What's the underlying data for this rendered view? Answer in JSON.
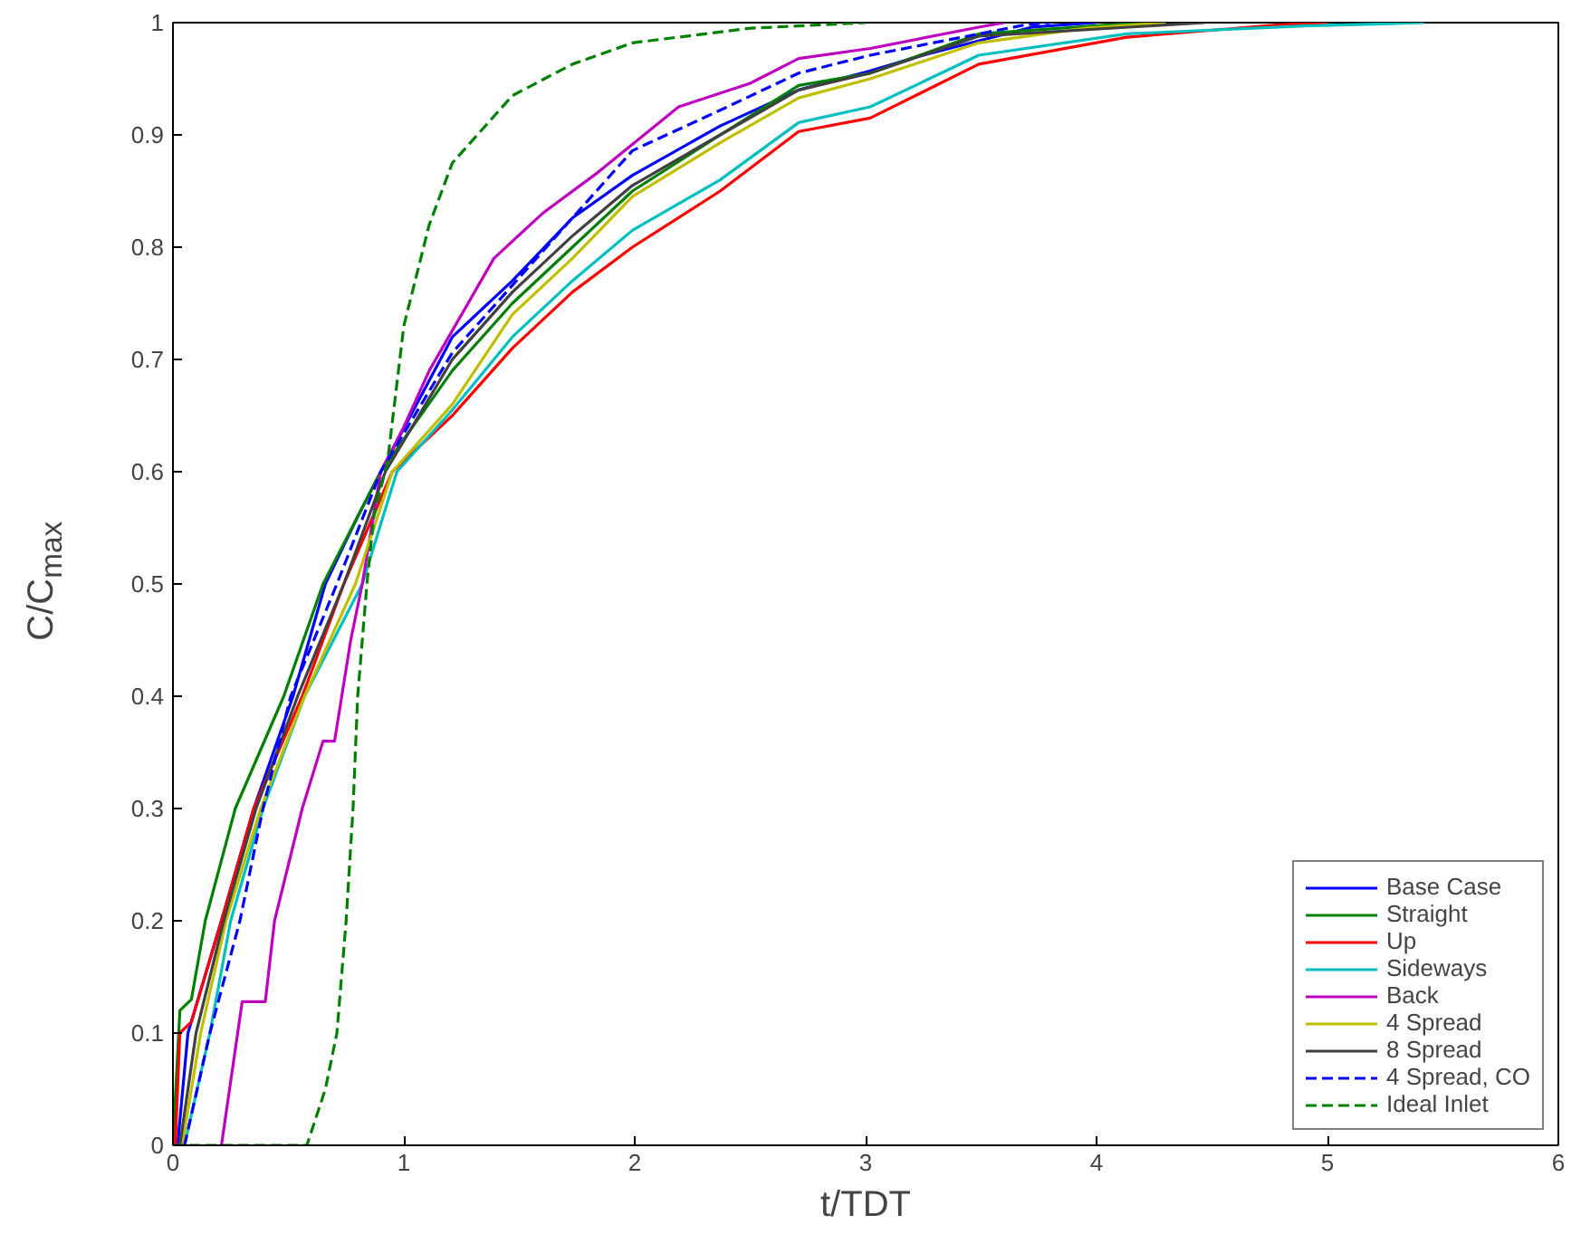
{
  "chart_data": {
    "type": "line",
    "xlabel": "t/TDT",
    "ylabel": "C/C$_{max}$",
    "xlim": [
      0,
      6
    ],
    "ylim": [
      0,
      1
    ],
    "xticks": [
      0,
      1,
      2,
      3,
      4,
      5,
      6
    ],
    "yticks": [
      0,
      0.1,
      0.2,
      0.3,
      0.4,
      0.5,
      0.6,
      0.7,
      0.8,
      0.9,
      1
    ],
    "grid": false,
    "legend": "bottom right",
    "series": [
      {
        "name": "Base Case",
        "color": "#0000ff",
        "line_style": "solid",
        "x": [
          0.02,
          0.065,
          0.21,
          0.35,
          0.52,
          0.66,
          0.8,
          0.9,
          1.21,
          1.47,
          1.73,
          1.99,
          2.37,
          2.71,
          3.02,
          3.23,
          3.72,
          4.0
        ],
        "values": [
          0,
          0.1,
          0.2,
          0.3,
          0.4,
          0.5,
          0.56,
          0.6,
          0.72,
          0.77,
          0.826,
          0.864,
          0.908,
          0.94,
          0.957,
          0.97,
          0.996,
          1
        ]
      },
      {
        "name": "Straight",
        "color": "#008000",
        "line_style": "solid",
        "x": [
          0,
          0.03,
          0.08,
          0.14,
          0.27,
          0.48,
          0.65,
          0.9,
          1.21,
          1.47,
          1.73,
          1.99,
          2.37,
          2.71,
          3.02,
          3.49,
          4.2
        ],
        "values": [
          0,
          0.12,
          0.13,
          0.2,
          0.3,
          0.4,
          0.5,
          0.6,
          0.69,
          0.75,
          0.8,
          0.85,
          0.9,
          0.944,
          0.955,
          0.99,
          1
        ]
      },
      {
        "name": "Up",
        "color": "#ff0000",
        "line_style": "solid",
        "x": [
          0.01,
          0.03,
          0.08,
          0.21,
          0.35,
          0.56,
          0.74,
          0.95,
          1.21,
          1.47,
          1.73,
          1.99,
          2.37,
          2.71,
          3.02,
          3.49,
          4.13,
          4.78,
          5.0
        ],
        "values": [
          0,
          0.1,
          0.11,
          0.2,
          0.3,
          0.4,
          0.5,
          0.6,
          0.65,
          0.71,
          0.76,
          0.8,
          0.85,
          0.903,
          0.915,
          0.963,
          0.987,
          0.998,
          1
        ]
      },
      {
        "name": "Sideways",
        "color": "#00bfbf",
        "line_style": "solid",
        "x": [
          0.05,
          0.16,
          0.25,
          0.39,
          0.57,
          0.82,
          0.97,
          1.21,
          1.47,
          1.73,
          1.99,
          2.37,
          2.71,
          3.02,
          3.49,
          4.13,
          4.9,
          5.42
        ],
        "values": [
          0,
          0.1,
          0.2,
          0.3,
          0.4,
          0.5,
          0.6,
          0.655,
          0.72,
          0.77,
          0.815,
          0.86,
          0.911,
          0.925,
          0.971,
          0.99,
          0.997,
          1
        ]
      },
      {
        "name": "Back",
        "color": "#bf00bf",
        "line_style": "solid",
        "x": [
          0.21,
          0.3,
          0.4,
          0.44,
          0.56,
          0.65,
          0.7,
          0.77,
          0.82,
          0.9,
          1.0,
          1.11,
          1.39,
          1.6,
          1.83,
          2.19,
          2.5,
          2.71,
          3.02,
          3.49,
          3.6
        ],
        "values": [
          0,
          0.128,
          0.128,
          0.2,
          0.3,
          0.36,
          0.36,
          0.45,
          0.5,
          0.6,
          0.64,
          0.69,
          0.79,
          0.83,
          0.865,
          0.925,
          0.946,
          0.968,
          0.977,
          0.996,
          1
        ]
      },
      {
        "name": "4 Spread",
        "color": "#bfbf00",
        "line_style": "solid",
        "x": [
          0.04,
          0.12,
          0.23,
          0.38,
          0.57,
          0.79,
          0.95,
          1.21,
          1.47,
          1.73,
          1.99,
          2.37,
          2.71,
          3.02,
          3.49,
          3.95,
          4.3
        ],
        "values": [
          0,
          0.1,
          0.2,
          0.3,
          0.4,
          0.5,
          0.6,
          0.66,
          0.74,
          0.79,
          0.845,
          0.893,
          0.933,
          0.95,
          0.982,
          0.995,
          1
        ]
      },
      {
        "name": "8 Spread",
        "color": "#404040",
        "line_style": "solid",
        "x": [
          0.03,
          0.1,
          0.22,
          0.36,
          0.54,
          0.74,
          0.92,
          1.21,
          1.47,
          1.73,
          1.99,
          2.37,
          2.71,
          3.02,
          3.49,
          4.47
        ],
        "values": [
          0,
          0.1,
          0.2,
          0.3,
          0.4,
          0.5,
          0.6,
          0.7,
          0.76,
          0.81,
          0.855,
          0.9,
          0.94,
          0.955,
          0.988,
          1
        ]
      },
      {
        "name": "4 Spread, CO",
        "color": "#0000ff",
        "line_style": "dashed",
        "x": [
          0.05,
          0.16,
          0.29,
          0.39,
          0.51,
          0.71,
          0.9,
          1.21,
          1.47,
          1.73,
          1.99,
          2.37,
          2.71,
          3.02,
          3.69,
          3.8
        ],
        "values": [
          0,
          0.1,
          0.2,
          0.3,
          0.4,
          0.5,
          0.6,
          0.706,
          0.766,
          0.826,
          0.886,
          0.922,
          0.955,
          0.971,
          0.998,
          1
        ]
      },
      {
        "name": "Ideal Inlet",
        "color": "#008000",
        "line_style": "dashed",
        "x": [
          0,
          0.58,
          0.66,
          0.71,
          0.75,
          0.78,
          0.8,
          0.84,
          0.87,
          0.93,
          1.0,
          1.11,
          1.21,
          1.47,
          1.73,
          1.99,
          2.5,
          3.0
        ],
        "values": [
          0,
          0,
          0.05,
          0.1,
          0.2,
          0.3,
          0.4,
          0.5,
          0.56,
          0.61,
          0.73,
          0.82,
          0.875,
          0.935,
          0.963,
          0.982,
          0.995,
          1
        ]
      }
    ]
  }
}
